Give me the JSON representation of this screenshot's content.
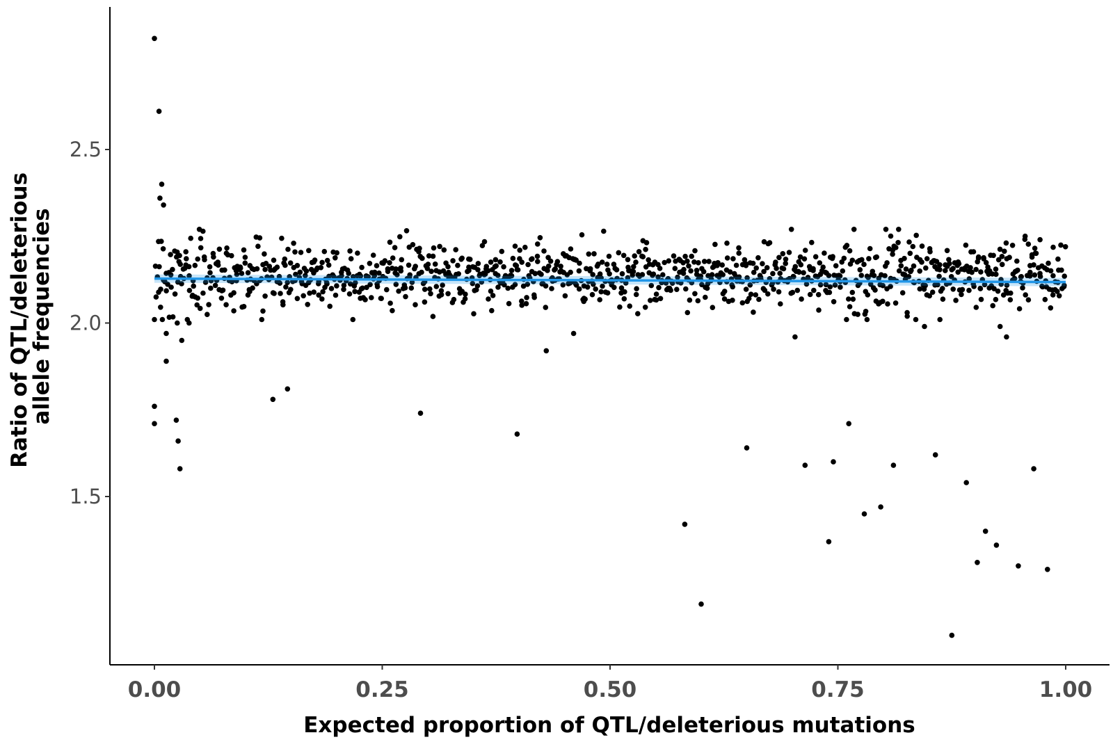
{
  "chart_data": {
    "type": "scatter",
    "title": "",
    "xlabel": "Expected proportion of QTL/deleterious mutations",
    "ylabel_line1": "Ratio of QTL/deleterious",
    "ylabel_line2": "allele frequencies",
    "xlim": [
      -0.05,
      1.05
    ],
    "ylim": [
      1.04,
      2.93
    ],
    "x_ticks": [
      0.0,
      0.25,
      0.5,
      0.75,
      1.0
    ],
    "x_tick_labels": [
      "0.00",
      "0.25",
      "0.50",
      "0.75",
      "1.00"
    ],
    "y_ticks": [
      1.5,
      2.0,
      2.5
    ],
    "y_tick_labels": [
      "1.5",
      "2.0",
      "2.5"
    ],
    "grid": false,
    "legend": "none",
    "point_color": "#000000",
    "trend_color": "#2196e8",
    "trend_line": {
      "x": [
        0.0,
        1.0
      ],
      "y": [
        2.128,
        2.118
      ]
    },
    "cloud": {
      "x_range": [
        0.0,
        1.0
      ],
      "count": 1100,
      "center": 2.14,
      "spread": 0.045
    },
    "outliers": {
      "x": [
        0.0,
        0.005,
        0.008,
        0.006,
        0.01,
        0.0,
        0.0,
        0.013,
        0.024,
        0.026,
        0.028,
        0.013,
        0.025,
        0.03,
        0.038,
        0.13,
        0.146,
        0.292,
        0.398,
        0.43,
        0.46,
        0.582,
        0.585,
        0.6,
        0.65,
        0.703,
        0.714,
        0.74,
        0.745,
        0.762,
        0.779,
        0.782,
        0.797,
        0.811,
        0.826,
        0.845,
        0.857,
        0.862,
        0.875,
        0.891,
        0.903,
        0.912,
        0.92,
        0.924,
        0.928,
        0.935,
        0.948,
        0.965,
        0.98
      ],
      "y": [
        2.82,
        2.61,
        2.4,
        2.36,
        2.34,
        1.76,
        1.71,
        1.89,
        1.72,
        1.66,
        1.58,
        1.97,
        2.0,
        1.95,
        2.0,
        1.78,
        1.81,
        1.74,
        1.68,
        1.92,
        1.97,
        1.42,
        2.03,
        1.19,
        1.64,
        1.96,
        1.59,
        1.37,
        1.6,
        1.71,
        1.45,
        2.01,
        1.47,
        1.59,
        2.03,
        1.99,
        1.62,
        2.01,
        1.1,
        1.54,
        1.31,
        1.4,
        2.05,
        1.36,
        1.99,
        1.96,
        1.3,
        1.58,
        1.29
      ]
    }
  }
}
